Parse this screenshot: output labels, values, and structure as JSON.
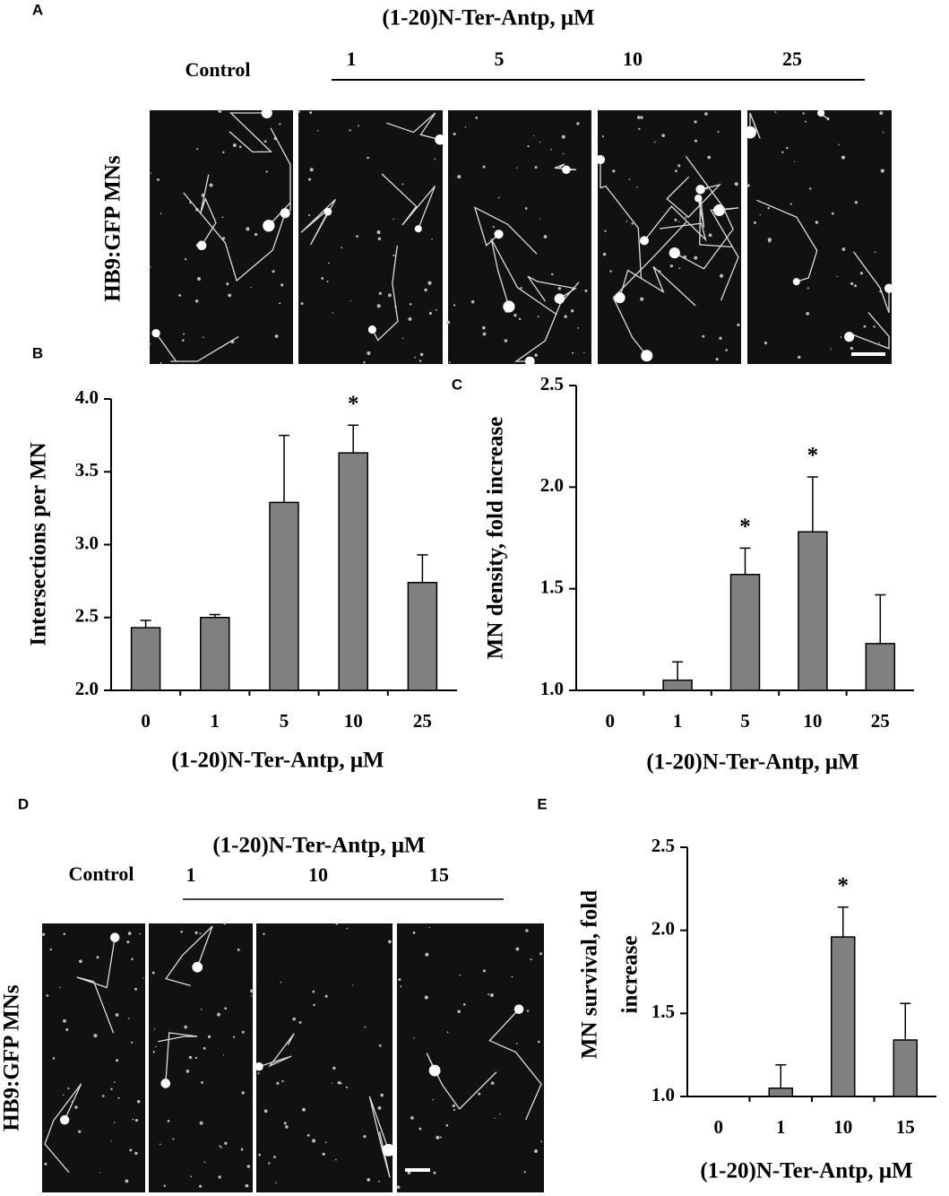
{
  "panels": {
    "A": {
      "letter": "A",
      "title": "(1-20)N-Ter-Antp, μM",
      "control": "Control",
      "doses": [
        "1",
        "5",
        "10",
        "25"
      ],
      "side_label": "HB9:GFP MNs"
    },
    "D": {
      "letter": "D",
      "title": "(1-20)N-Ter-Antp, μM",
      "control": "Control",
      "doses": [
        "1",
        "10",
        "15"
      ],
      "side_label": "HB9:GFP MNs"
    }
  },
  "chart_data": [
    {
      "type": "bar",
      "label": "B",
      "ylabel": [
        "Intersections per MN"
      ],
      "xlabel": "(1-20)N-Ter-Antp, μM",
      "categories": [
        "0",
        "1",
        "5",
        "10",
        "25"
      ],
      "values": [
        2.43,
        2.5,
        3.29,
        3.63,
        2.74
      ],
      "errors": [
        0.05,
        0.02,
        0.46,
        0.19,
        0.19
      ],
      "color": "#808080",
      "ylim": [
        2,
        4
      ],
      "yticks": [
        {
          "value": 2,
          "label": "2.0"
        },
        {
          "value": 2.5,
          "label": "2.5"
        },
        {
          "value": 3,
          "label": "3.0"
        },
        {
          "value": 3.5,
          "label": "3.5"
        },
        {
          "value": 4,
          "label": "4.0"
        }
      ],
      "annotations": [
        {
          "category": "10",
          "text": "*"
        }
      ]
    },
    {
      "type": "bar",
      "label": "C",
      "ylabel": [
        "MN density, fold increase"
      ],
      "xlabel": "(1-20)N-Ter-Antp, μM",
      "categories": [
        "0",
        "1",
        "5",
        "10",
        "25"
      ],
      "values": [
        1,
        1.05,
        1.57,
        1.78,
        1.23
      ],
      "errors": [
        0,
        0.09,
        0.13,
        0.27,
        0.24
      ],
      "color": "#808080",
      "ylim": [
        1,
        2.5
      ],
      "yticks": [
        {
          "value": 1,
          "label": "1.0"
        },
        {
          "value": 1.5,
          "label": "1.5"
        },
        {
          "value": 2,
          "label": "2.0"
        },
        {
          "value": 2.5,
          "label": "2.5"
        }
      ],
      "annotations": [
        {
          "category": "5",
          "text": "*"
        },
        {
          "category": "10",
          "text": "*"
        }
      ]
    },
    {
      "type": "bar",
      "label": "E",
      "ylabel": [
        "MN survival, fold",
        "increase"
      ],
      "xlabel": "(1-20)N-Ter-Antp, μM",
      "categories": [
        "0",
        "1",
        "10",
        "15"
      ],
      "values": [
        1,
        1.05,
        1.96,
        1.34
      ],
      "errors": [
        0,
        0.14,
        0.18,
        0.22
      ],
      "color": "#808080",
      "ylim": [
        1,
        2.5
      ],
      "yticks": [
        {
          "value": 1,
          "label": "1.0"
        },
        {
          "value": 1.5,
          "label": "1.5"
        },
        {
          "value": 2,
          "label": "2.0"
        },
        {
          "value": 2.5,
          "label": "2.5"
        }
      ],
      "annotations": [
        {
          "category": "10",
          "text": "*"
        }
      ]
    }
  ]
}
